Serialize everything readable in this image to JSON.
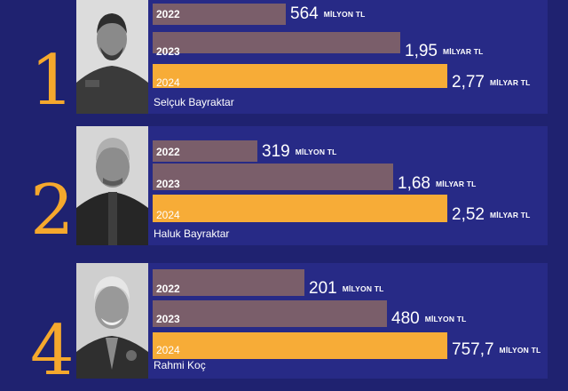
{
  "chart_data": {
    "type": "bar",
    "title": "",
    "xlabel": "",
    "ylabel": "",
    "colors": {
      "2022": "#7a5e6a",
      "2023": "#7a5e6a",
      "2024": "#f7ac37"
    },
    "entries": [
      {
        "rank": "1",
        "name": "Selçuk Bayraktar",
        "bars": [
          {
            "year": "2022",
            "value_try_million": 564,
            "num": "564",
            "unit": "MİLYON TL"
          },
          {
            "year": "2023",
            "value_try_million": 1950,
            "num": "1,95",
            "unit": "MİLYAR TL"
          },
          {
            "year": "2024",
            "value_try_million": 2770,
            "num": "2,77",
            "unit": "MİLYAR TL"
          }
        ]
      },
      {
        "rank": "2",
        "name": "Haluk Bayraktar",
        "bars": [
          {
            "year": "2022",
            "value_try_million": 319,
            "num": "319",
            "unit": "MİLYON TL"
          },
          {
            "year": "2023",
            "value_try_million": 1680,
            "num": "1,68",
            "unit": "MİLYAR TL"
          },
          {
            "year": "2024",
            "value_try_million": 2520,
            "num": "2,52",
            "unit": "MİLYAR TL"
          }
        ]
      },
      {
        "rank": "4",
        "name": "Rahmi Koç",
        "bars": [
          {
            "year": "2022",
            "value_try_million": 201,
            "num": "201",
            "unit": "MİLYON TL"
          },
          {
            "year": "2023",
            "value_try_million": 480,
            "num": "480",
            "unit": "MİLYON TL"
          },
          {
            "year": "2024",
            "value_try_million": 757.7,
            "num": "757,7",
            "unit": "MİLYON TL"
          }
        ]
      }
    ]
  }
}
